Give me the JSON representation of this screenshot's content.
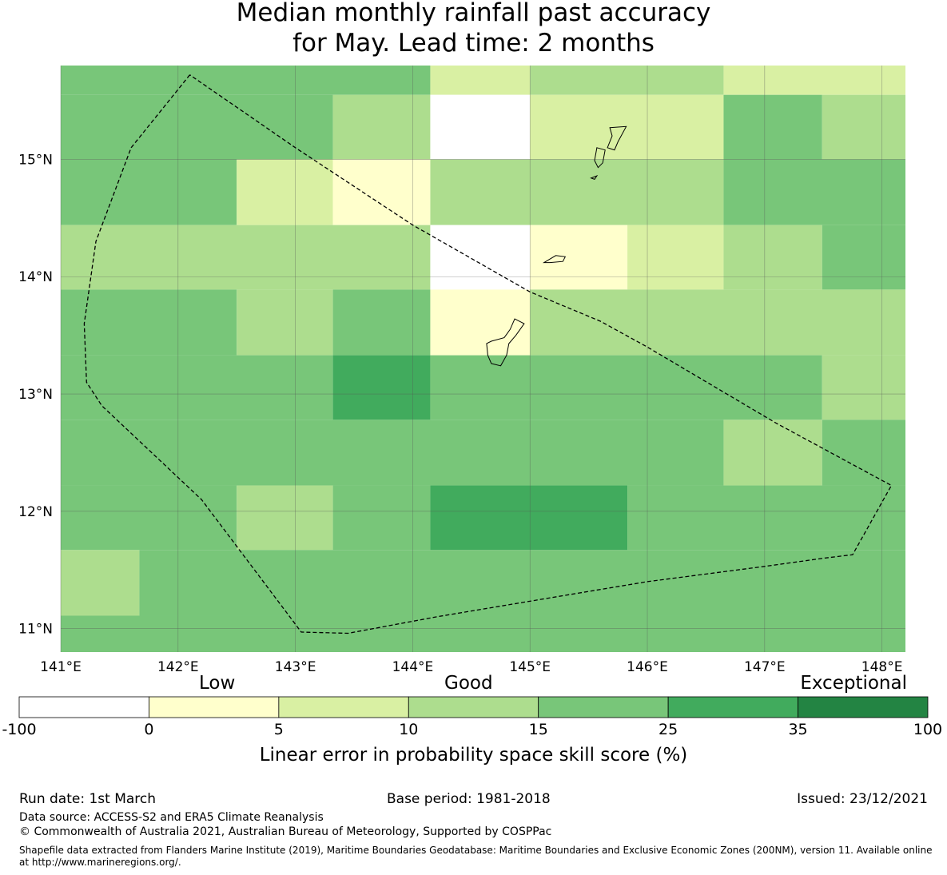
{
  "title": {
    "line1": "Median monthly rainfall past accuracy",
    "line2": "for May. Lead time: 2 months"
  },
  "map": {
    "lon_range": [
      141.0,
      148.2
    ],
    "lat_range": [
      10.8,
      15.8
    ],
    "lon_ticks": [
      "141°E",
      "142°E",
      "143°E",
      "144°E",
      "145°E",
      "146°E",
      "147°E",
      "148°E"
    ],
    "lat_ticks": [
      "15°N",
      "14°N",
      "13°N",
      "12°N",
      "11°N"
    ],
    "grid_cells": [
      {
        "lon0": 141.0,
        "lon1": 144.15,
        "lat0": 15.55,
        "lat1": 15.8,
        "cls": 4
      },
      {
        "lon0": 144.15,
        "lon1": 145.0,
        "lat0": 15.55,
        "lat1": 15.8,
        "cls": 2
      },
      {
        "lon0": 145.0,
        "lon1": 146.65,
        "lat0": 15.55,
        "lat1": 15.8,
        "cls": 3
      },
      {
        "lon0": 146.65,
        "lon1": 148.2,
        "lat0": 15.55,
        "lat1": 15.8,
        "cls": 2
      },
      {
        "lon0": 141.0,
        "lon1": 143.32,
        "lat0": 15.0,
        "lat1": 15.55,
        "cls": 4
      },
      {
        "lon0": 143.32,
        "lon1": 144.15,
        "lat0": 15.0,
        "lat1": 15.55,
        "cls": 3
      },
      {
        "lon0": 144.15,
        "lon1": 145.0,
        "lat0": 15.0,
        "lat1": 15.55,
        "cls": 0
      },
      {
        "lon0": 145.0,
        "lon1": 146.65,
        "lat0": 15.0,
        "lat1": 15.55,
        "cls": 2
      },
      {
        "lon0": 146.65,
        "lon1": 147.49,
        "lat0": 15.0,
        "lat1": 15.55,
        "cls": 4
      },
      {
        "lon0": 147.49,
        "lon1": 148.2,
        "lat0": 15.0,
        "lat1": 15.55,
        "cls": 3
      },
      {
        "lon0": 141.0,
        "lon1": 142.5,
        "lat0": 14.44,
        "lat1": 15.0,
        "cls": 4
      },
      {
        "lon0": 142.5,
        "lon1": 143.32,
        "lat0": 14.44,
        "lat1": 15.0,
        "cls": 2
      },
      {
        "lon0": 143.32,
        "lon1": 144.15,
        "lat0": 14.44,
        "lat1": 15.0,
        "cls": 1
      },
      {
        "lon0": 144.15,
        "lon1": 146.65,
        "lat0": 14.44,
        "lat1": 15.0,
        "cls": 3
      },
      {
        "lon0": 146.65,
        "lon1": 148.2,
        "lat0": 14.44,
        "lat1": 15.0,
        "cls": 4
      },
      {
        "lon0": 141.0,
        "lon1": 144.15,
        "lat0": 13.89,
        "lat1": 14.44,
        "cls": 3
      },
      {
        "lon0": 144.15,
        "lon1": 145.0,
        "lat0": 13.89,
        "lat1": 14.44,
        "cls": 0
      },
      {
        "lon0": 145.0,
        "lon1": 145.83,
        "lat0": 13.89,
        "lat1": 14.44,
        "cls": 1
      },
      {
        "lon0": 145.83,
        "lon1": 146.65,
        "lat0": 13.89,
        "lat1": 14.44,
        "cls": 2
      },
      {
        "lon0": 146.65,
        "lon1": 147.49,
        "lat0": 13.89,
        "lat1": 14.44,
        "cls": 3
      },
      {
        "lon0": 147.49,
        "lon1": 148.2,
        "lat0": 13.89,
        "lat1": 14.44,
        "cls": 4
      },
      {
        "lon0": 141.0,
        "lon1": 142.5,
        "lat0": 13.33,
        "lat1": 13.89,
        "cls": 4
      },
      {
        "lon0": 142.5,
        "lon1": 143.32,
        "lat0": 13.33,
        "lat1": 13.89,
        "cls": 3
      },
      {
        "lon0": 143.32,
        "lon1": 144.15,
        "lat0": 13.33,
        "lat1": 13.89,
        "cls": 4
      },
      {
        "lon0": 144.15,
        "lon1": 145.0,
        "lat0": 13.33,
        "lat1": 13.89,
        "cls": 1
      },
      {
        "lon0": 145.0,
        "lon1": 148.2,
        "lat0": 13.33,
        "lat1": 13.89,
        "cls": 3
      },
      {
        "lon0": 141.0,
        "lon1": 143.32,
        "lat0": 12.78,
        "lat1": 13.33,
        "cls": 4
      },
      {
        "lon0": 143.32,
        "lon1": 144.15,
        "lat0": 12.78,
        "lat1": 13.33,
        "cls": 5
      },
      {
        "lon0": 144.15,
        "lon1": 147.49,
        "lat0": 12.78,
        "lat1": 13.33,
        "cls": 4
      },
      {
        "lon0": 147.49,
        "lon1": 148.2,
        "lat0": 12.78,
        "lat1": 13.33,
        "cls": 3
      },
      {
        "lon0": 141.0,
        "lon1": 146.65,
        "lat0": 12.22,
        "lat1": 12.78,
        "cls": 4
      },
      {
        "lon0": 146.65,
        "lon1": 147.49,
        "lat0": 12.22,
        "lat1": 12.78,
        "cls": 3
      },
      {
        "lon0": 147.49,
        "lon1": 148.2,
        "lat0": 12.22,
        "lat1": 12.78,
        "cls": 4
      },
      {
        "lon0": 141.0,
        "lon1": 142.5,
        "lat0": 11.67,
        "lat1": 12.22,
        "cls": 4
      },
      {
        "lon0": 142.5,
        "lon1": 143.32,
        "lat0": 11.67,
        "lat1": 12.22,
        "cls": 3
      },
      {
        "lon0": 143.32,
        "lon1": 144.15,
        "lat0": 11.67,
        "lat1": 12.22,
        "cls": 4
      },
      {
        "lon0": 144.15,
        "lon1": 145.83,
        "lat0": 11.67,
        "lat1": 12.22,
        "cls": 5
      },
      {
        "lon0": 145.83,
        "lon1": 148.2,
        "lat0": 11.67,
        "lat1": 12.22,
        "cls": 4
      },
      {
        "lon0": 141.0,
        "lon1": 141.67,
        "lat0": 11.11,
        "lat1": 11.67,
        "cls": 3
      },
      {
        "lon0": 141.67,
        "lon1": 148.2,
        "lat0": 11.11,
        "lat1": 11.67,
        "cls": 4
      },
      {
        "lon0": 141.0,
        "lon1": 148.2,
        "lat0": 10.8,
        "lat1": 11.11,
        "cls": 4
      }
    ],
    "eez_boundary": [
      [
        142.1,
        15.72
      ],
      [
        141.6,
        15.1
      ],
      [
        141.3,
        14.3
      ],
      [
        141.2,
        13.6
      ],
      [
        141.22,
        13.1
      ],
      [
        141.35,
        12.9
      ],
      [
        142.2,
        12.1
      ],
      [
        143.05,
        10.97
      ],
      [
        143.45,
        10.96
      ],
      [
        144.2,
        11.1
      ],
      [
        145.1,
        11.25
      ],
      [
        146.0,
        11.4
      ],
      [
        147.0,
        11.53
      ],
      [
        147.5,
        11.6
      ],
      [
        147.75,
        11.63
      ],
      [
        148.08,
        12.22
      ],
      [
        147.1,
        12.75
      ],
      [
        146.0,
        13.4
      ],
      [
        145.6,
        13.62
      ],
      [
        145.0,
        13.87
      ],
      [
        144.0,
        14.44
      ],
      [
        143.0,
        15.1
      ],
      [
        142.1,
        15.72
      ]
    ],
    "islands": [
      [
        [
          145.68,
          15.27
        ],
        [
          145.82,
          15.28
        ],
        [
          145.75,
          15.15
        ],
        [
          145.72,
          15.08
        ],
        [
          145.66,
          15.1
        ],
        [
          145.7,
          15.2
        ],
        [
          145.68,
          15.27
        ]
      ],
      [
        [
          145.57,
          15.1
        ],
        [
          145.64,
          15.08
        ],
        [
          145.62,
          14.97
        ],
        [
          145.58,
          14.93
        ],
        [
          145.55,
          14.99
        ],
        [
          145.57,
          15.1
        ]
      ],
      [
        [
          145.52,
          14.84
        ],
        [
          145.57,
          14.86
        ],
        [
          145.55,
          14.83
        ],
        [
          145.52,
          14.84
        ]
      ],
      [
        [
          145.12,
          14.12
        ],
        [
          145.22,
          14.18
        ],
        [
          145.3,
          14.17
        ],
        [
          145.28,
          14.13
        ],
        [
          145.17,
          14.12
        ],
        [
          145.12,
          14.12
        ]
      ],
      [
        [
          144.87,
          13.64
        ],
        [
          144.95,
          13.6
        ],
        [
          144.88,
          13.5
        ],
        [
          144.82,
          13.43
        ],
        [
          144.8,
          13.33
        ],
        [
          144.75,
          13.24
        ],
        [
          144.67,
          13.26
        ],
        [
          144.64,
          13.33
        ],
        [
          144.63,
          13.43
        ],
        [
          144.67,
          13.45
        ],
        [
          144.78,
          13.48
        ],
        [
          144.83,
          13.55
        ],
        [
          144.87,
          13.64
        ]
      ]
    ]
  },
  "colorbar": {
    "categories": [
      "Low",
      "Good",
      "Exceptional"
    ],
    "bins": [
      "#ffffff",
      "#ffffcc",
      "#d9f0a3",
      "#addd8e",
      "#78c679",
      "#41ab5d",
      "#238443"
    ],
    "ticks": [
      "-100",
      "0",
      "5",
      "10",
      "15",
      "25",
      "35",
      "100"
    ],
    "label": "Linear error in probability space skill score (%)"
  },
  "footer": {
    "run_date": "Run date: 1st March",
    "base_period": "Base period: 1981-2018",
    "issued": "Issued: 23/12/2021",
    "data_source": "Data source: ACCESS-S2 and ERA5 Climate Reanalysis",
    "copyright": "© Commonwealth of Australia 2021, Australian Bureau of Meteorology, Supported by COSPPac",
    "shapefile_line1": "Shapefile data extracted from Flanders Marine Institute (2019), Maritime Boundaries Geodatabase: Maritime Boundaries and Exclusive Economic Zones (200NM), version 11. Available online",
    "shapefile_line2": "at http://www.marineregions.org/."
  }
}
